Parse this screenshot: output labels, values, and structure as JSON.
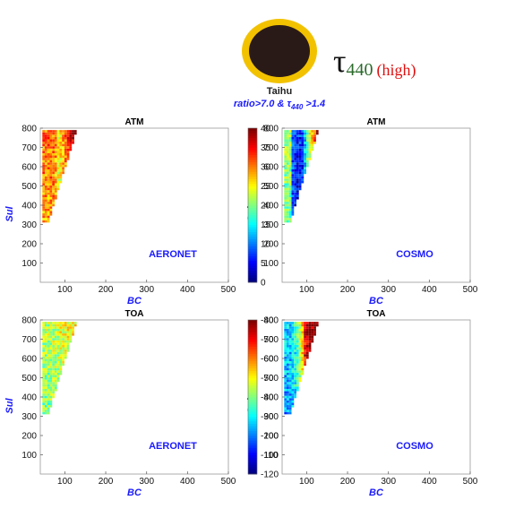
{
  "header": {
    "site_label": "Taihu",
    "criteria_prefix": "ratio>7.0 & ",
    "criteria_tau": "τ",
    "criteria_sub": "440",
    "criteria_suffix": " >1.4",
    "tau_symbol": "τ",
    "tau_subscript": "440",
    "tau_note": "(high)",
    "colors": {
      "badge_fill": "#2a1a17",
      "badge_ring": "#f2c200",
      "criteria": "#1a1aff",
      "tau_sub": "#2a6a2a",
      "tau_note": "#e01010"
    }
  },
  "colorbars": [
    {
      "id": "atm",
      "ticks": [
        "40",
        "35",
        "30",
        "25",
        "20",
        "15",
        "10",
        "5",
        "0"
      ],
      "vmin": 0,
      "vmax": 40
    },
    {
      "id": "toa",
      "ticks": [
        "-40",
        "-50",
        "-60",
        "-70",
        "-80",
        "-90",
        "-100",
        "-110",
        "-120"
      ],
      "vmin": -120,
      "vmax": -40
    }
  ],
  "chart_data": [
    {
      "type": "heatmap",
      "title": "ATM",
      "xlabel": "BC",
      "ylabel": "Sul",
      "source_label": "AERONET",
      "xlim": [
        40,
        500
      ],
      "ylim": [
        0,
        800
      ],
      "xticks": [
        "100",
        "200",
        "300",
        "400",
        "500"
      ],
      "yticks": [
        "100",
        "200",
        "300",
        "400",
        "500",
        "600",
        "700",
        "800"
      ],
      "value_range": [
        0,
        40
      ],
      "trend": [
        [
          60,
          30
        ],
        [
          65,
          30
        ],
        [
          70,
          30
        ],
        [
          75,
          28
        ],
        [
          80,
          25
        ],
        [
          85,
          25
        ],
        [
          90,
          26
        ],
        [
          95,
          28
        ],
        [
          100,
          30
        ],
        [
          105,
          32
        ],
        [
          110,
          34
        ],
        [
          115,
          36
        ],
        [
          120,
          37
        ],
        [
          125,
          38
        ]
      ]
    },
    {
      "type": "heatmap",
      "title": "ATM",
      "xlabel": "BC",
      "ylabel": "Sul",
      "source_label": "COSMO",
      "xlim": [
        40,
        500
      ],
      "ylim": [
        0,
        800
      ],
      "xticks": [
        "100",
        "200",
        "300",
        "400",
        "500"
      ],
      "yticks": [
        "100",
        "200",
        "300",
        "400",
        "500",
        "600",
        "700",
        "800"
      ],
      "value_range": [
        0,
        40
      ],
      "trend": [
        [
          60,
          20
        ],
        [
          65,
          8
        ],
        [
          70,
          6
        ],
        [
          75,
          5
        ],
        [
          80,
          5
        ],
        [
          85,
          6
        ],
        [
          90,
          8
        ],
        [
          95,
          12
        ],
        [
          100,
          18
        ],
        [
          105,
          22
        ],
        [
          110,
          26
        ],
        [
          115,
          30
        ],
        [
          120,
          34
        ],
        [
          125,
          38
        ]
      ]
    },
    {
      "type": "heatmap",
      "title": "TOA",
      "xlabel": "BC",
      "ylabel": "Sul",
      "source_label": "AERONET",
      "xlim": [
        40,
        500
      ],
      "ylim": [
        0,
        800
      ],
      "xticks": [
        "100",
        "200",
        "300",
        "400",
        "500"
      ],
      "yticks": [
        "100",
        "200",
        "300",
        "400",
        "500",
        "600",
        "700",
        "800"
      ],
      "value_range": [
        -120,
        -40
      ],
      "trend": [
        [
          60,
          -78
        ],
        [
          65,
          -78
        ],
        [
          70,
          -77
        ],
        [
          75,
          -76
        ],
        [
          80,
          -76
        ],
        [
          85,
          -75
        ],
        [
          90,
          -75
        ],
        [
          95,
          -74
        ],
        [
          100,
          -74
        ],
        [
          105,
          -73
        ],
        [
          110,
          -73
        ],
        [
          115,
          -72
        ],
        [
          120,
          -72
        ],
        [
          125,
          -71
        ]
      ]
    },
    {
      "type": "heatmap",
      "title": "TOA",
      "xlabel": "BC",
      "ylabel": "Sul",
      "source_label": "COSMO",
      "xlim": [
        40,
        500
      ],
      "ylim": [
        0,
        800
      ],
      "xticks": [
        "100",
        "200",
        "300",
        "400",
        "500"
      ],
      "yticks": [
        "100",
        "200",
        "300",
        "400",
        "500",
        "600",
        "700",
        "800"
      ],
      "value_range": [
        -120,
        -40
      ],
      "trend": [
        [
          60,
          -95
        ],
        [
          65,
          -92
        ],
        [
          70,
          -90
        ],
        [
          75,
          -85
        ],
        [
          80,
          -75
        ],
        [
          85,
          -65
        ],
        [
          90,
          -55
        ],
        [
          95,
          -50
        ],
        [
          100,
          -48
        ],
        [
          105,
          -45
        ],
        [
          110,
          -44
        ],
        [
          115,
          -42
        ],
        [
          120,
          -41
        ],
        [
          125,
          -40
        ]
      ]
    }
  ]
}
